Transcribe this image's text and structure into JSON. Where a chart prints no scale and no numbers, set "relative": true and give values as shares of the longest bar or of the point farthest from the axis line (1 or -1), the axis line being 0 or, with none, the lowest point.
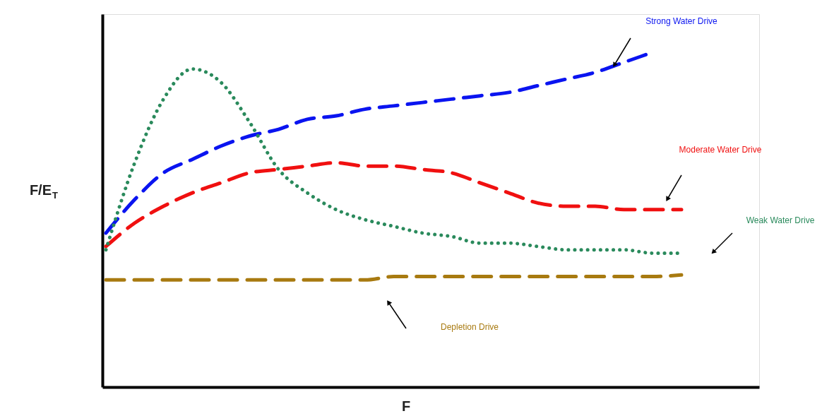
{
  "chart_data": {
    "type": "line",
    "relative": true,
    "xlabel": "F",
    "ylabel": "F/E$_{T}$",
    "tick_labels": false,
    "categories": [
      null,
      null,
      null,
      null,
      null,
      null,
      null,
      null,
      null,
      null,
      null,
      null,
      null,
      null,
      null,
      null,
      null,
      null,
      null,
      null,
      null
    ],
    "series": [
      {
        "name": "Strong Water Drive",
        "color": "#0a14f0",
        "line_style": "dashed",
        "values": [
          0.46,
          0.56,
          0.64,
          0.68,
          0.72,
          0.75,
          0.77,
          0.8,
          0.81,
          0.83,
          0.84,
          0.85,
          0.86,
          0.87,
          0.88,
          0.9,
          0.92,
          0.94,
          0.97,
          1.0,
          null
        ]
      },
      {
        "name": "Moderate Water Drive",
        "color": "#f01010",
        "line_style": "dashed",
        "values": [
          0.42,
          0.49,
          0.54,
          0.58,
          0.61,
          0.64,
          0.65,
          0.66,
          0.67,
          0.66,
          0.66,
          0.65,
          0.64,
          0.61,
          0.58,
          0.55,
          0.54,
          0.54,
          0.53,
          0.53,
          0.53
        ]
      },
      {
        "name": "Weak Water Drive",
        "color": "#2a8a5c",
        "line_style": "dotted",
        "values": [
          0.41,
          0.67,
          0.86,
          0.95,
          0.91,
          0.79,
          0.65,
          0.58,
          0.53,
          0.5,
          0.48,
          0.46,
          0.45,
          0.43,
          0.43,
          0.42,
          0.41,
          0.41,
          0.41,
          0.4,
          0.4
        ]
      },
      {
        "name": "Depletion Drive",
        "color": "#a87a10",
        "line_style": "dashed",
        "values": [
          0.32,
          0.32,
          0.32,
          0.32,
          0.32,
          0.32,
          0.32,
          0.32,
          0.32,
          0.32,
          0.33,
          0.33,
          0.33,
          0.33,
          0.33,
          0.33,
          0.33,
          0.33,
          0.33,
          0.33,
          0.335
        ]
      }
    ]
  }
}
